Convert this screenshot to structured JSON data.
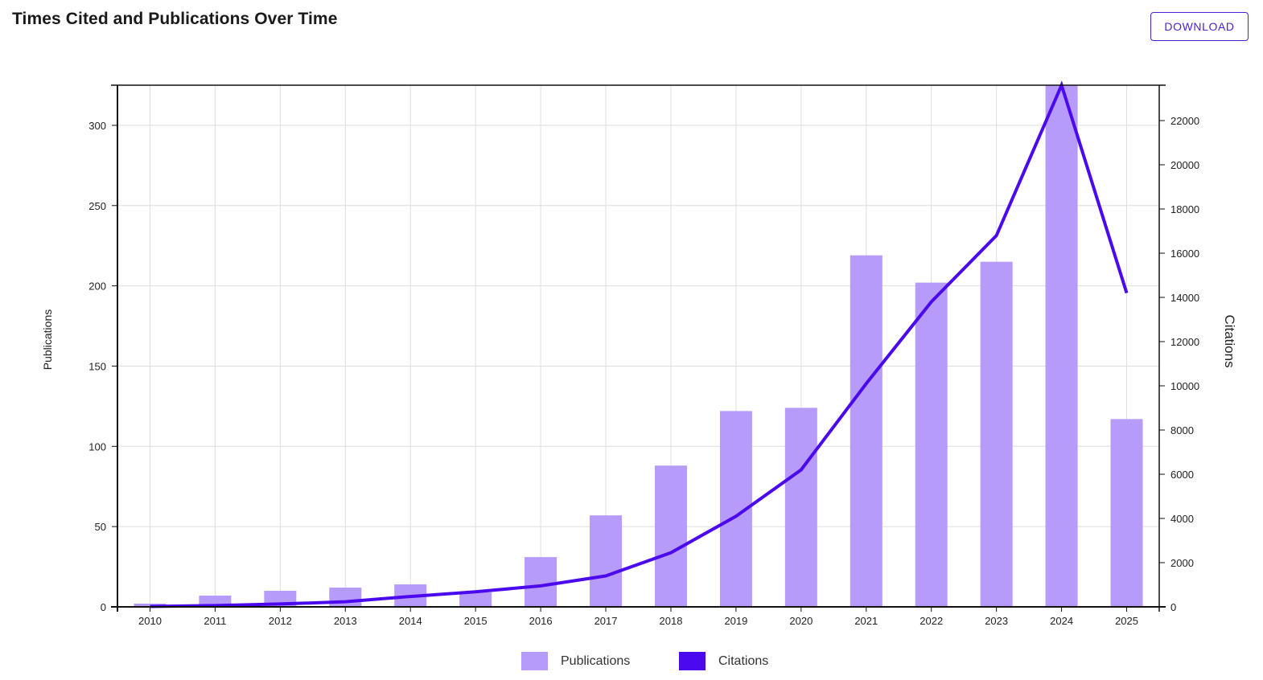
{
  "header": {
    "title": "Times Cited and Publications Over Time",
    "download_label": "DOWNLOAD"
  },
  "colors": {
    "bar": "#b79bfb",
    "line": "#4b0aee",
    "grid": "#dedede",
    "axis": "#111111",
    "button": "#4a1fd6"
  },
  "chart_data": {
    "type": "bar",
    "title": "Times Cited and Publications Over Time",
    "categories": [
      "2010",
      "2011",
      "2012",
      "2013",
      "2014",
      "2015",
      "2016",
      "2017",
      "2018",
      "2019",
      "2020",
      "2021",
      "2022",
      "2023",
      "2024",
      "2025"
    ],
    "series": [
      {
        "name": "Publications",
        "type": "bar",
        "axis": "left",
        "values": [
          2,
          7,
          10,
          12,
          14,
          9,
          31,
          57,
          88,
          122,
          124,
          219,
          202,
          215,
          325,
          117
        ]
      },
      {
        "name": "Citations",
        "type": "line",
        "axis": "right",
        "values": [
          20,
          60,
          130,
          230,
          470,
          680,
          950,
          1400,
          2450,
          4100,
          6200,
          10100,
          13800,
          16800,
          23600,
          14200
        ]
      }
    ],
    "ylabel": "Publications",
    "y2label": "Citations",
    "ylim": [
      0,
      325
    ],
    "y2lim": [
      0,
      23600
    ],
    "yticks": [
      0,
      50,
      100,
      150,
      200,
      250,
      300
    ],
    "y2ticks": [
      0,
      2000,
      4000,
      6000,
      8000,
      10000,
      12000,
      14000,
      16000,
      18000,
      20000,
      22000
    ],
    "grid": true,
    "legend": "bottom-center"
  }
}
